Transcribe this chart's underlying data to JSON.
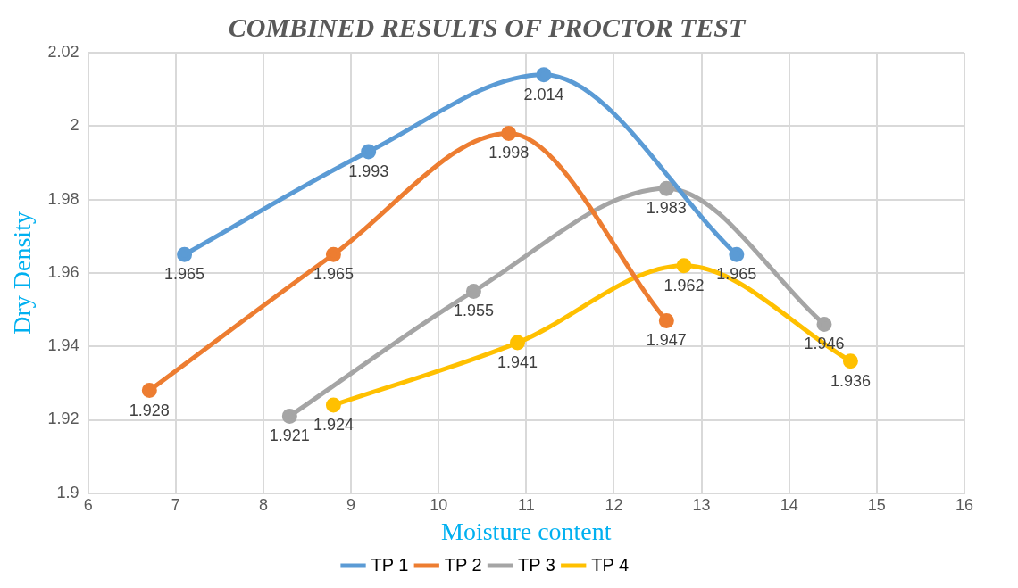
{
  "chart_data": {
    "type": "line",
    "title": "COMBINED RESULTS OF PROCTOR TEST",
    "xlabel": "Moisture content",
    "ylabel": "Dry Density",
    "xlim": [
      6,
      16
    ],
    "xticks": [
      6,
      7,
      8,
      9,
      10,
      11,
      12,
      13,
      14,
      15,
      16
    ],
    "ylim": [
      1.9,
      2.02
    ],
    "yticks": [
      1.9,
      1.92,
      1.94,
      1.96,
      1.98,
      2,
      2.02
    ],
    "grid": true,
    "legend": "bottom",
    "marker": "circle",
    "data_labels": true,
    "series": [
      {
        "name": "TP 1",
        "color": "#5b9bd5",
        "x": [
          7.1,
          9.2,
          11.2,
          13.4
        ],
        "values": [
          1.965,
          1.993,
          2.014,
          1.965
        ]
      },
      {
        "name": "TP 2",
        "color": "#ed7d31",
        "x": [
          6.7,
          8.8,
          10.8,
          12.6
        ],
        "values": [
          1.928,
          1.965,
          1.998,
          1.947
        ]
      },
      {
        "name": "TP 3",
        "color": "#a5a5a5",
        "x": [
          8.3,
          10.4,
          12.6,
          14.4
        ],
        "values": [
          1.921,
          1.955,
          1.983,
          1.946
        ]
      },
      {
        "name": "TP 4",
        "color": "#ffc000",
        "x": [
          8.8,
          10.9,
          12.8,
          14.7
        ],
        "values": [
          1.924,
          1.941,
          1.962,
          1.936
        ]
      }
    ]
  }
}
